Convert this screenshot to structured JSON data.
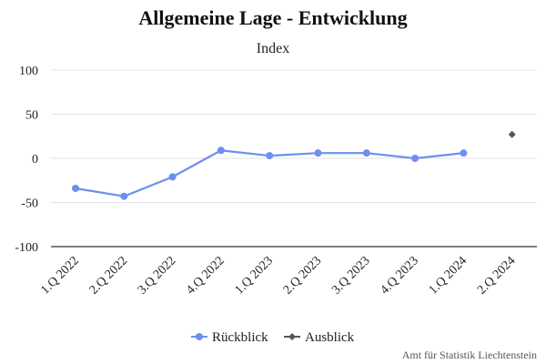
{
  "chart_data": {
    "type": "line",
    "title": "Allgemeine Lage - Entwicklung",
    "subtitle": "Index",
    "categories": [
      "1.Q 2022",
      "2.Q 2022",
      "3.Q 2022",
      "4.Q 2022",
      "1.Q 2023",
      "2.Q 2023",
      "3.Q 2023",
      "4.Q 2023",
      "1.Q 2024",
      "2.Q 2024"
    ],
    "ylim": [
      -100,
      100
    ],
    "yticks": [
      100,
      50,
      0,
      -50,
      -100
    ],
    "grid": true,
    "legend_position": "bottom-center",
    "series": [
      {
        "name": "Rückblick",
        "color": "#6c8ff0",
        "marker": "circle",
        "values": [
          -34,
          -43,
          -21,
          9,
          3,
          6,
          6,
          0,
          6,
          null
        ]
      },
      {
        "name": "Ausblick",
        "color": "#555555",
        "marker": "diamond",
        "values": [
          null,
          null,
          null,
          null,
          null,
          null,
          null,
          null,
          null,
          27
        ]
      }
    ],
    "credit": "Amt für Statistik Liechtenstein"
  }
}
